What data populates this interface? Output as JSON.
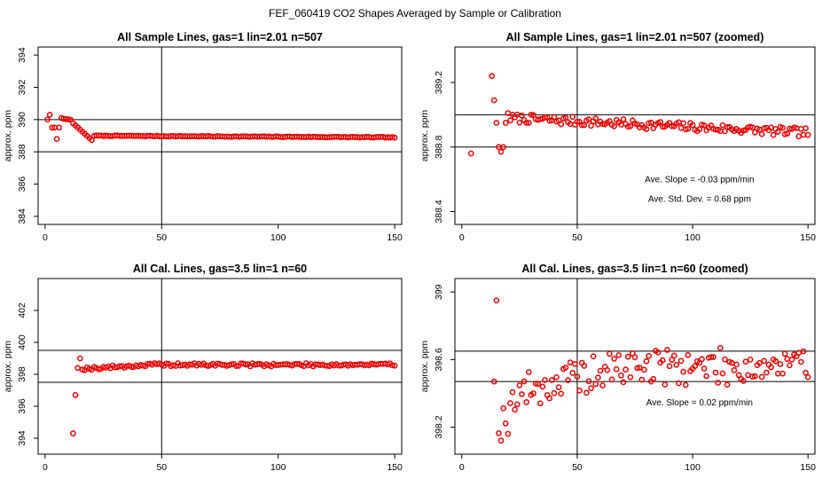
{
  "figure": {
    "suptitle": "FEF_060419  CO2 Shapes Averaged by Sample or Calibration"
  },
  "colors": {
    "points": "#ee0000",
    "lines": "#000000"
  },
  "chart_data": [
    {
      "type": "scatter",
      "title": "All Sample Lines, gas=1 lin=2.01 n=507",
      "xlabel": "",
      "ylabel": "approx. ppm",
      "xlim": [
        -3,
        153
      ],
      "ylim": [
        383.5,
        394.5
      ],
      "xticks": [
        0,
        50,
        100,
        150
      ],
      "yticks": [
        384,
        386,
        388,
        390,
        392,
        394
      ],
      "vline": 50,
      "hlines": [
        388.0,
        390.0
      ],
      "annotations": [],
      "series": [
        {
          "name": "sample",
          "x": [],
          "y": []
        }
      ],
      "gen": {
        "mode": "sample_full"
      }
    },
    {
      "type": "scatter",
      "title": "All Sample Lines, gas=1 lin=2.01 n=507 (zoomed)",
      "xlabel": "",
      "ylabel": "approx. ppm",
      "xlim": [
        -3,
        153
      ],
      "ylim": [
        388.32,
        389.42
      ],
      "xticks": [
        0,
        50,
        100,
        150
      ],
      "yticks": [
        388.4,
        388.8,
        389.2
      ],
      "vline": 50,
      "hlines": [
        388.8,
        389.0
      ],
      "annotations": [
        {
          "text": "Ave. Slope =  -0.03  ppm/min",
          "x": 103,
          "y": 388.58
        },
        {
          "text": "Ave. Std. Dev. =  0.68  ppm",
          "x": 103,
          "y": 388.46
        }
      ],
      "series": [
        {
          "name": "sample",
          "x": [],
          "y": []
        }
      ],
      "gen": {
        "mode": "sample_zoom"
      }
    },
    {
      "type": "scatter",
      "title": "All Cal. Lines, gas=3.5 lin=1 n=60",
      "xlabel": "",
      "ylabel": "approx. ppm",
      "xlim": [
        -3,
        153
      ],
      "ylim": [
        393.0,
        404.0
      ],
      "xticks": [
        0,
        50,
        100,
        150
      ],
      "yticks": [
        394,
        396,
        398,
        400,
        402
      ],
      "vline": 50,
      "hlines": [
        397.5,
        399.5
      ],
      "annotations": [],
      "series": [
        {
          "name": "cal",
          "x": [],
          "y": []
        }
      ],
      "gen": {
        "mode": "cal_full"
      }
    },
    {
      "type": "scatter",
      "title": "All Cal. Lines, gas=3.5 lin=1 n=60 (zoomed)",
      "xlabel": "",
      "ylabel": "approx. ppm",
      "xlim": [
        -3,
        153
      ],
      "ylim": [
        398.04,
        399.08
      ],
      "xticks": [
        0,
        50,
        100,
        150
      ],
      "yticks": [
        398.2,
        398.6,
        399.0
      ],
      "vline": 50,
      "hlines": [
        398.47,
        398.65
      ],
      "annotations": [
        {
          "text": "Ave. Slope =  0.02  ppm/min",
          "x": 103,
          "y": 398.33
        }
      ],
      "series": [
        {
          "name": "cal",
          "x": [],
          "y": []
        }
      ],
      "gen": {
        "mode": "cal_zoom"
      }
    }
  ]
}
